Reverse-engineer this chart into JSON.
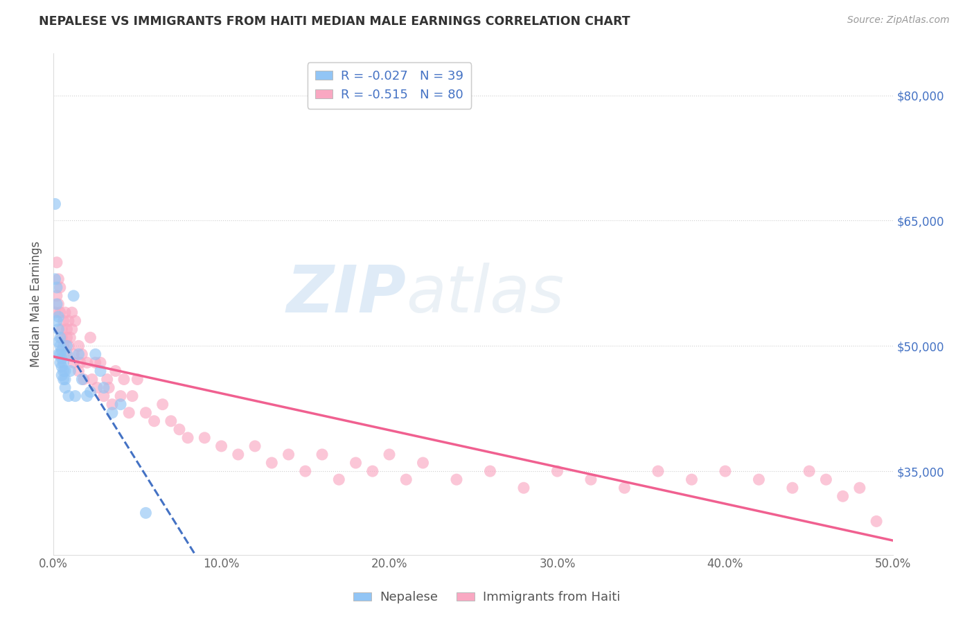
{
  "title": "NEPALESE VS IMMIGRANTS FROM HAITI MEDIAN MALE EARNINGS CORRELATION CHART",
  "source": "Source: ZipAtlas.com",
  "xlabel_nepalese": "Nepalese",
  "xlabel_haiti": "Immigrants from Haiti",
  "ylabel": "Median Male Earnings",
  "r_nepalese": -0.027,
  "n_nepalese": 39,
  "r_haiti": -0.515,
  "n_haiti": 80,
  "xlim": [
    0.0,
    0.5
  ],
  "ylim": [
    25000,
    85000
  ],
  "yticks": [
    35000,
    50000,
    65000,
    80000
  ],
  "ytick_labels": [
    "$35,000",
    "$50,000",
    "$65,000",
    "$80,000"
  ],
  "xticks": [
    0.0,
    0.1,
    0.2,
    0.3,
    0.4,
    0.5
  ],
  "xtick_labels": [
    "0.0%",
    "10.0%",
    "20.0%",
    "30.0%",
    "40.0%",
    "50.0%"
  ],
  "color_nepalese": "#92C5F5",
  "color_haiti": "#F9A8C2",
  "color_trend_nepalese": "#4472C4",
  "color_trend_haiti": "#F06090",
  "watermark_zip": "ZIP",
  "watermark_atlas": "atlas",
  "nepalese_x": [
    0.001,
    0.001,
    0.002,
    0.002,
    0.002,
    0.003,
    0.003,
    0.003,
    0.003,
    0.004,
    0.004,
    0.004,
    0.004,
    0.005,
    0.005,
    0.005,
    0.005,
    0.006,
    0.006,
    0.006,
    0.007,
    0.007,
    0.007,
    0.008,
    0.008,
    0.009,
    0.01,
    0.012,
    0.013,
    0.015,
    0.017,
    0.02,
    0.022,
    0.025,
    0.028,
    0.03,
    0.035,
    0.04,
    0.055
  ],
  "nepalese_y": [
    67000,
    58000,
    57000,
    55000,
    53000,
    53500,
    52000,
    50500,
    49000,
    51000,
    50000,
    49000,
    48000,
    49500,
    48500,
    47500,
    46500,
    48000,
    47000,
    46000,
    47000,
    46000,
    45000,
    50000,
    49000,
    44000,
    47000,
    56000,
    44000,
    49000,
    46000,
    44000,
    44500,
    49000,
    47000,
    45000,
    42000,
    43000,
    30000
  ],
  "haiti_x": [
    0.001,
    0.002,
    0.002,
    0.003,
    0.003,
    0.004,
    0.004,
    0.005,
    0.005,
    0.006,
    0.006,
    0.007,
    0.007,
    0.008,
    0.008,
    0.009,
    0.009,
    0.01,
    0.011,
    0.011,
    0.012,
    0.012,
    0.013,
    0.015,
    0.015,
    0.016,
    0.017,
    0.018,
    0.02,
    0.022,
    0.023,
    0.025,
    0.026,
    0.028,
    0.03,
    0.032,
    0.033,
    0.035,
    0.037,
    0.04,
    0.042,
    0.045,
    0.047,
    0.05,
    0.055,
    0.06,
    0.065,
    0.07,
    0.075,
    0.08,
    0.09,
    0.1,
    0.11,
    0.12,
    0.13,
    0.14,
    0.15,
    0.16,
    0.17,
    0.18,
    0.19,
    0.2,
    0.21,
    0.22,
    0.24,
    0.26,
    0.28,
    0.3,
    0.32,
    0.34,
    0.36,
    0.38,
    0.4,
    0.42,
    0.44,
    0.45,
    0.46,
    0.47,
    0.48,
    0.49
  ],
  "haiti_y": [
    54000,
    60000,
    56000,
    55000,
    58000,
    57000,
    54000,
    52000,
    51000,
    53000,
    50000,
    54000,
    49000,
    52000,
    51000,
    53000,
    50000,
    51000,
    54000,
    52000,
    49000,
    48000,
    53000,
    50000,
    47000,
    48000,
    49000,
    46000,
    48000,
    51000,
    46000,
    48000,
    45000,
    48000,
    44000,
    46000,
    45000,
    43000,
    47000,
    44000,
    46000,
    42000,
    44000,
    46000,
    42000,
    41000,
    43000,
    41000,
    40000,
    39000,
    39000,
    38000,
    37000,
    38000,
    36000,
    37000,
    35000,
    37000,
    34000,
    36000,
    35000,
    37000,
    34000,
    36000,
    34000,
    35000,
    33000,
    35000,
    34000,
    33000,
    35000,
    34000,
    35000,
    34000,
    33000,
    35000,
    34000,
    32000,
    33000,
    29000
  ]
}
